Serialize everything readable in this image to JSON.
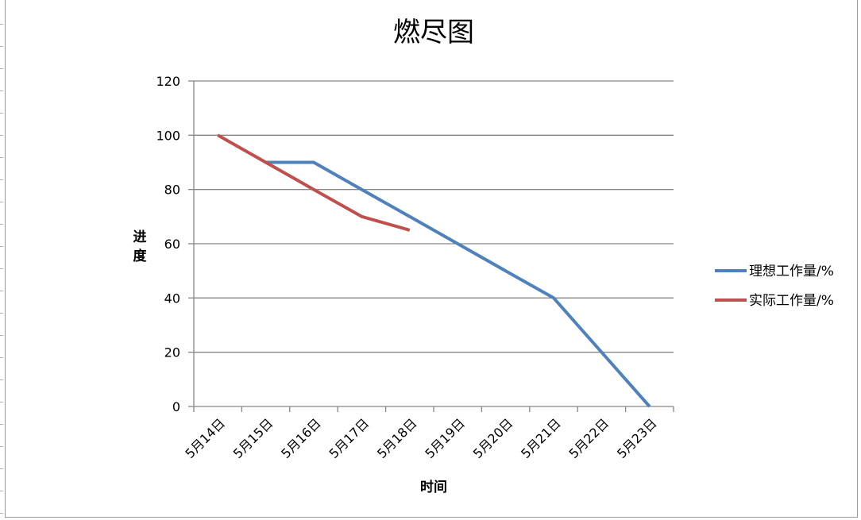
{
  "chart_data": {
    "type": "line",
    "title": "燃尽图",
    "xlabel": "时间",
    "ylabel": "进度",
    "ylim": [
      0,
      120
    ],
    "yticks": [
      0,
      20,
      40,
      60,
      80,
      100,
      120
    ],
    "categories": [
      "5月14日",
      "5月15日",
      "5月16日",
      "5月17日",
      "5月18日",
      "5月19日",
      "5月20日",
      "5月21日",
      "5月22日",
      "5月23日"
    ],
    "grid": true,
    "legend": "right",
    "series": [
      {
        "name": "理想工作量/%",
        "color": "#4f81bd",
        "values": [
          null,
          90,
          90,
          80,
          70,
          60,
          50,
          40,
          20,
          0
        ]
      },
      {
        "name": "实际工作量/%",
        "color": "#c0504d",
        "values": [
          100,
          90,
          80,
          70,
          65,
          null,
          null,
          null,
          null,
          null
        ]
      }
    ]
  }
}
